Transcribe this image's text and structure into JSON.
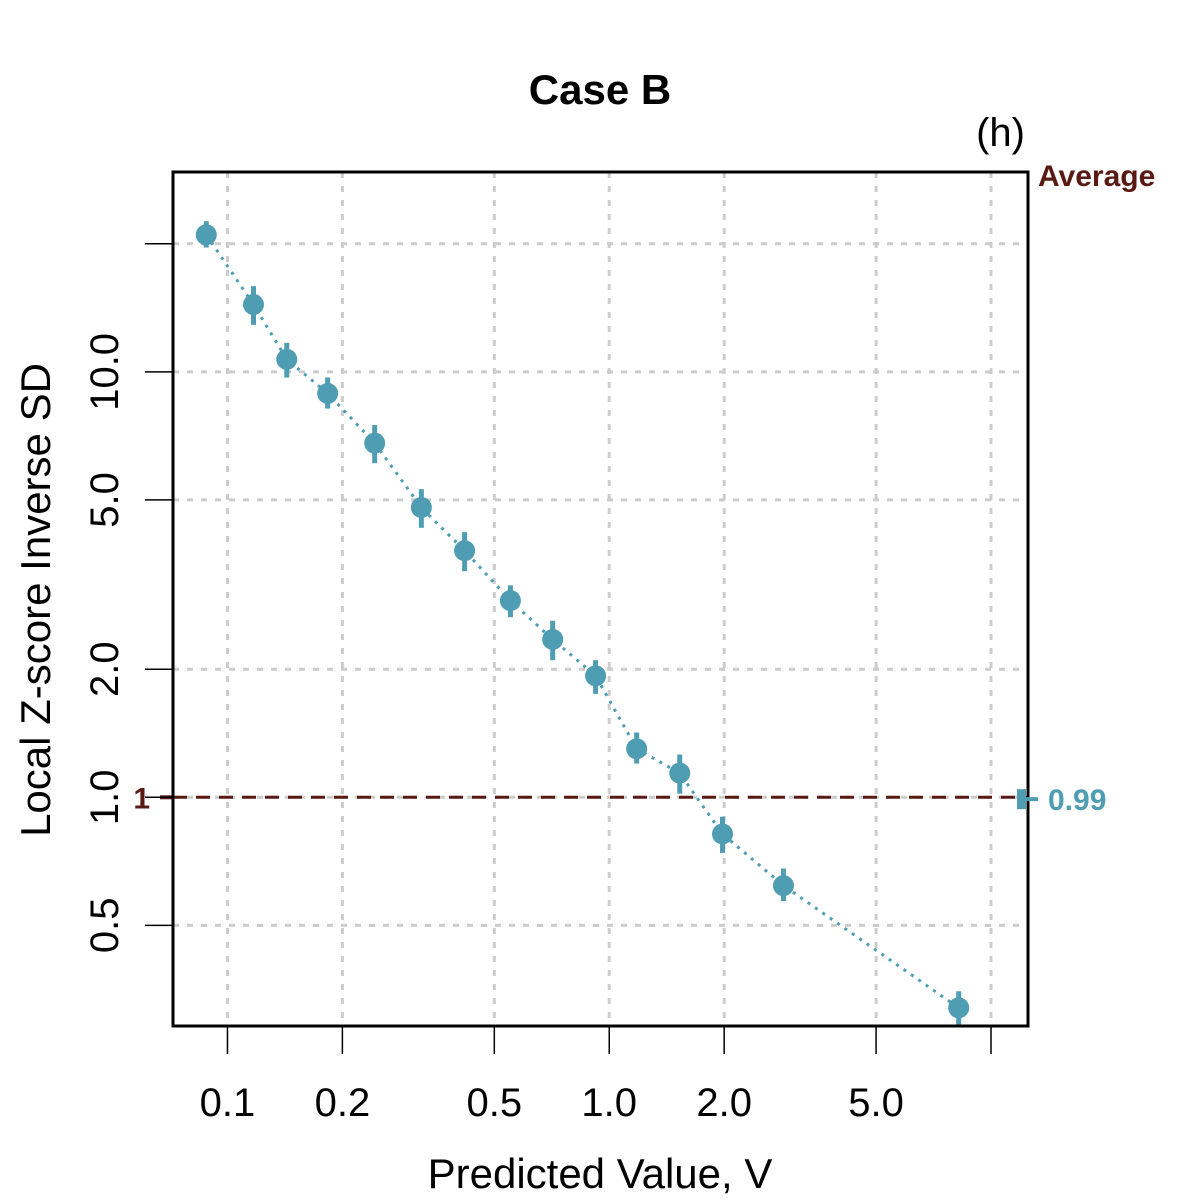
{
  "chart_data": {
    "type": "scatter",
    "title": "Case B",
    "panel_label": "(h)",
    "xlabel": "Predicted Value, V",
    "ylabel": "Local Z-score Inverse SD",
    "x_scale": "log",
    "y_scale": "log",
    "xlim": [
      0.072,
      12.5
    ],
    "ylim": [
      0.29,
      29.5
    ],
    "x_ticks": [
      0.1,
      0.2,
      0.5,
      1.0,
      2.0,
      5.0,
      10.0
    ],
    "x_tick_labels": [
      "0.1",
      "0.2",
      "0.5",
      "1.0",
      "2.0",
      "5.0",
      ""
    ],
    "y_ticks": [
      0.5,
      1.0,
      2.0,
      5.0,
      10.0,
      20.0
    ],
    "y_tick_labels": [
      "0.5",
      "1.0",
      "2.0",
      "5.0",
      "10.0",
      ""
    ],
    "grid": true,
    "reference_line": {
      "y": 1,
      "label": "1",
      "color": "#5a1a14",
      "style": "dashed"
    },
    "average": {
      "title": "Average",
      "value": 0.99,
      "label": "0.99"
    },
    "colors": {
      "points": "#4e9db2",
      "reference": "#5a1a14",
      "grid": "#cccccc"
    },
    "series": [
      {
        "x": [
          0.088,
          0.117,
          0.143,
          0.183,
          0.243,
          0.322,
          0.418,
          0.551,
          0.711,
          0.921,
          1.18,
          1.53,
          1.98,
          2.86,
          8.23
        ],
        "y": [
          21.0,
          14.4,
          10.7,
          8.9,
          6.8,
          4.8,
          3.8,
          2.9,
          2.35,
          1.93,
          1.3,
          1.14,
          0.82,
          0.62,
          0.32
        ],
        "y_low": [
          19.6,
          12.9,
          9.7,
          8.2,
          6.1,
          4.3,
          3.4,
          2.65,
          2.1,
          1.75,
          1.2,
          1.02,
          0.74,
          0.57,
          0.29
        ],
        "y_high": [
          22.6,
          15.9,
          11.7,
          9.7,
          7.5,
          5.3,
          4.2,
          3.15,
          2.6,
          2.1,
          1.42,
          1.26,
          0.9,
          0.68,
          0.35
        ]
      }
    ]
  }
}
